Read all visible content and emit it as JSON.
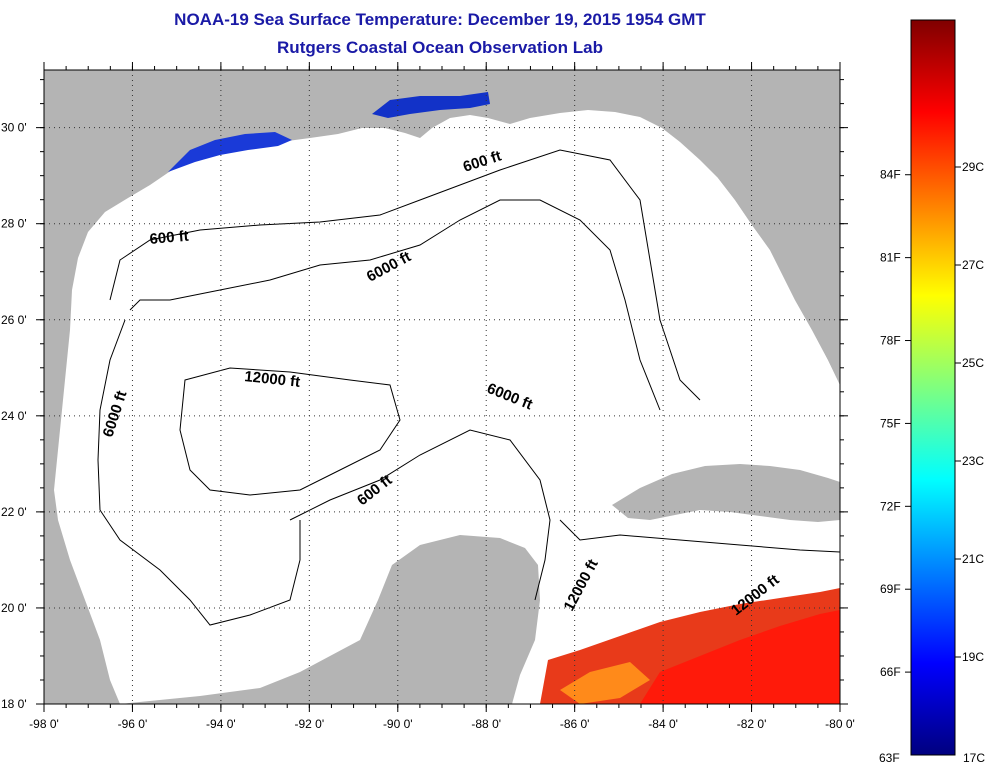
{
  "header": {
    "title": "NOAA-19 Sea Surface Temperature:  December 19, 2015 1954 GMT",
    "subtitle": "Rutgers Coastal Ocean Observation Lab"
  },
  "map": {
    "region": "Gulf of Mexico",
    "lon_range": [
      -98,
      -80
    ],
    "lat_range": [
      18,
      31.2
    ],
    "lon_ticks": [
      "-98 0'",
      "-96 0'",
      "-94 0'",
      "-92 0'",
      "-90 0'",
      "-88 0'",
      "-86 0'",
      "-84 0'",
      "-82 0'",
      "-80 0'"
    ],
    "lat_ticks": [
      "18 0'",
      "20 0'",
      "22 0'",
      "24 0'",
      "26 0'",
      "28 0'",
      "30 0'"
    ],
    "grid": "dotted",
    "land_color": "#b4b4b4",
    "water_color": "#ffffff",
    "contour_labels": [
      {
        "text": "600 ft"
      },
      {
        "text": "600 ft"
      },
      {
        "text": "6000 ft"
      },
      {
        "text": "12000 ft"
      },
      {
        "text": "6000 ft"
      },
      {
        "text": "6000 ft"
      },
      {
        "text": "600 ft"
      },
      {
        "text": "12000 ft"
      },
      {
        "text": "12000 ft"
      }
    ]
  },
  "colorbar": {
    "min_label_f": "63F",
    "min_label_c": "17C",
    "fahrenheit_ticks": [
      "84F",
      "81F",
      "78F",
      "75F",
      "72F",
      "69F",
      "66F"
    ],
    "celsius_ticks": [
      "29C",
      "27C",
      "25C",
      "23C",
      "21C",
      "19C"
    ],
    "colors": [
      "#00007f",
      "#0000ff",
      "#007fff",
      "#00ffff",
      "#7fff7f",
      "#ffff00",
      "#ff7f00",
      "#ff0000",
      "#7f0000"
    ]
  }
}
